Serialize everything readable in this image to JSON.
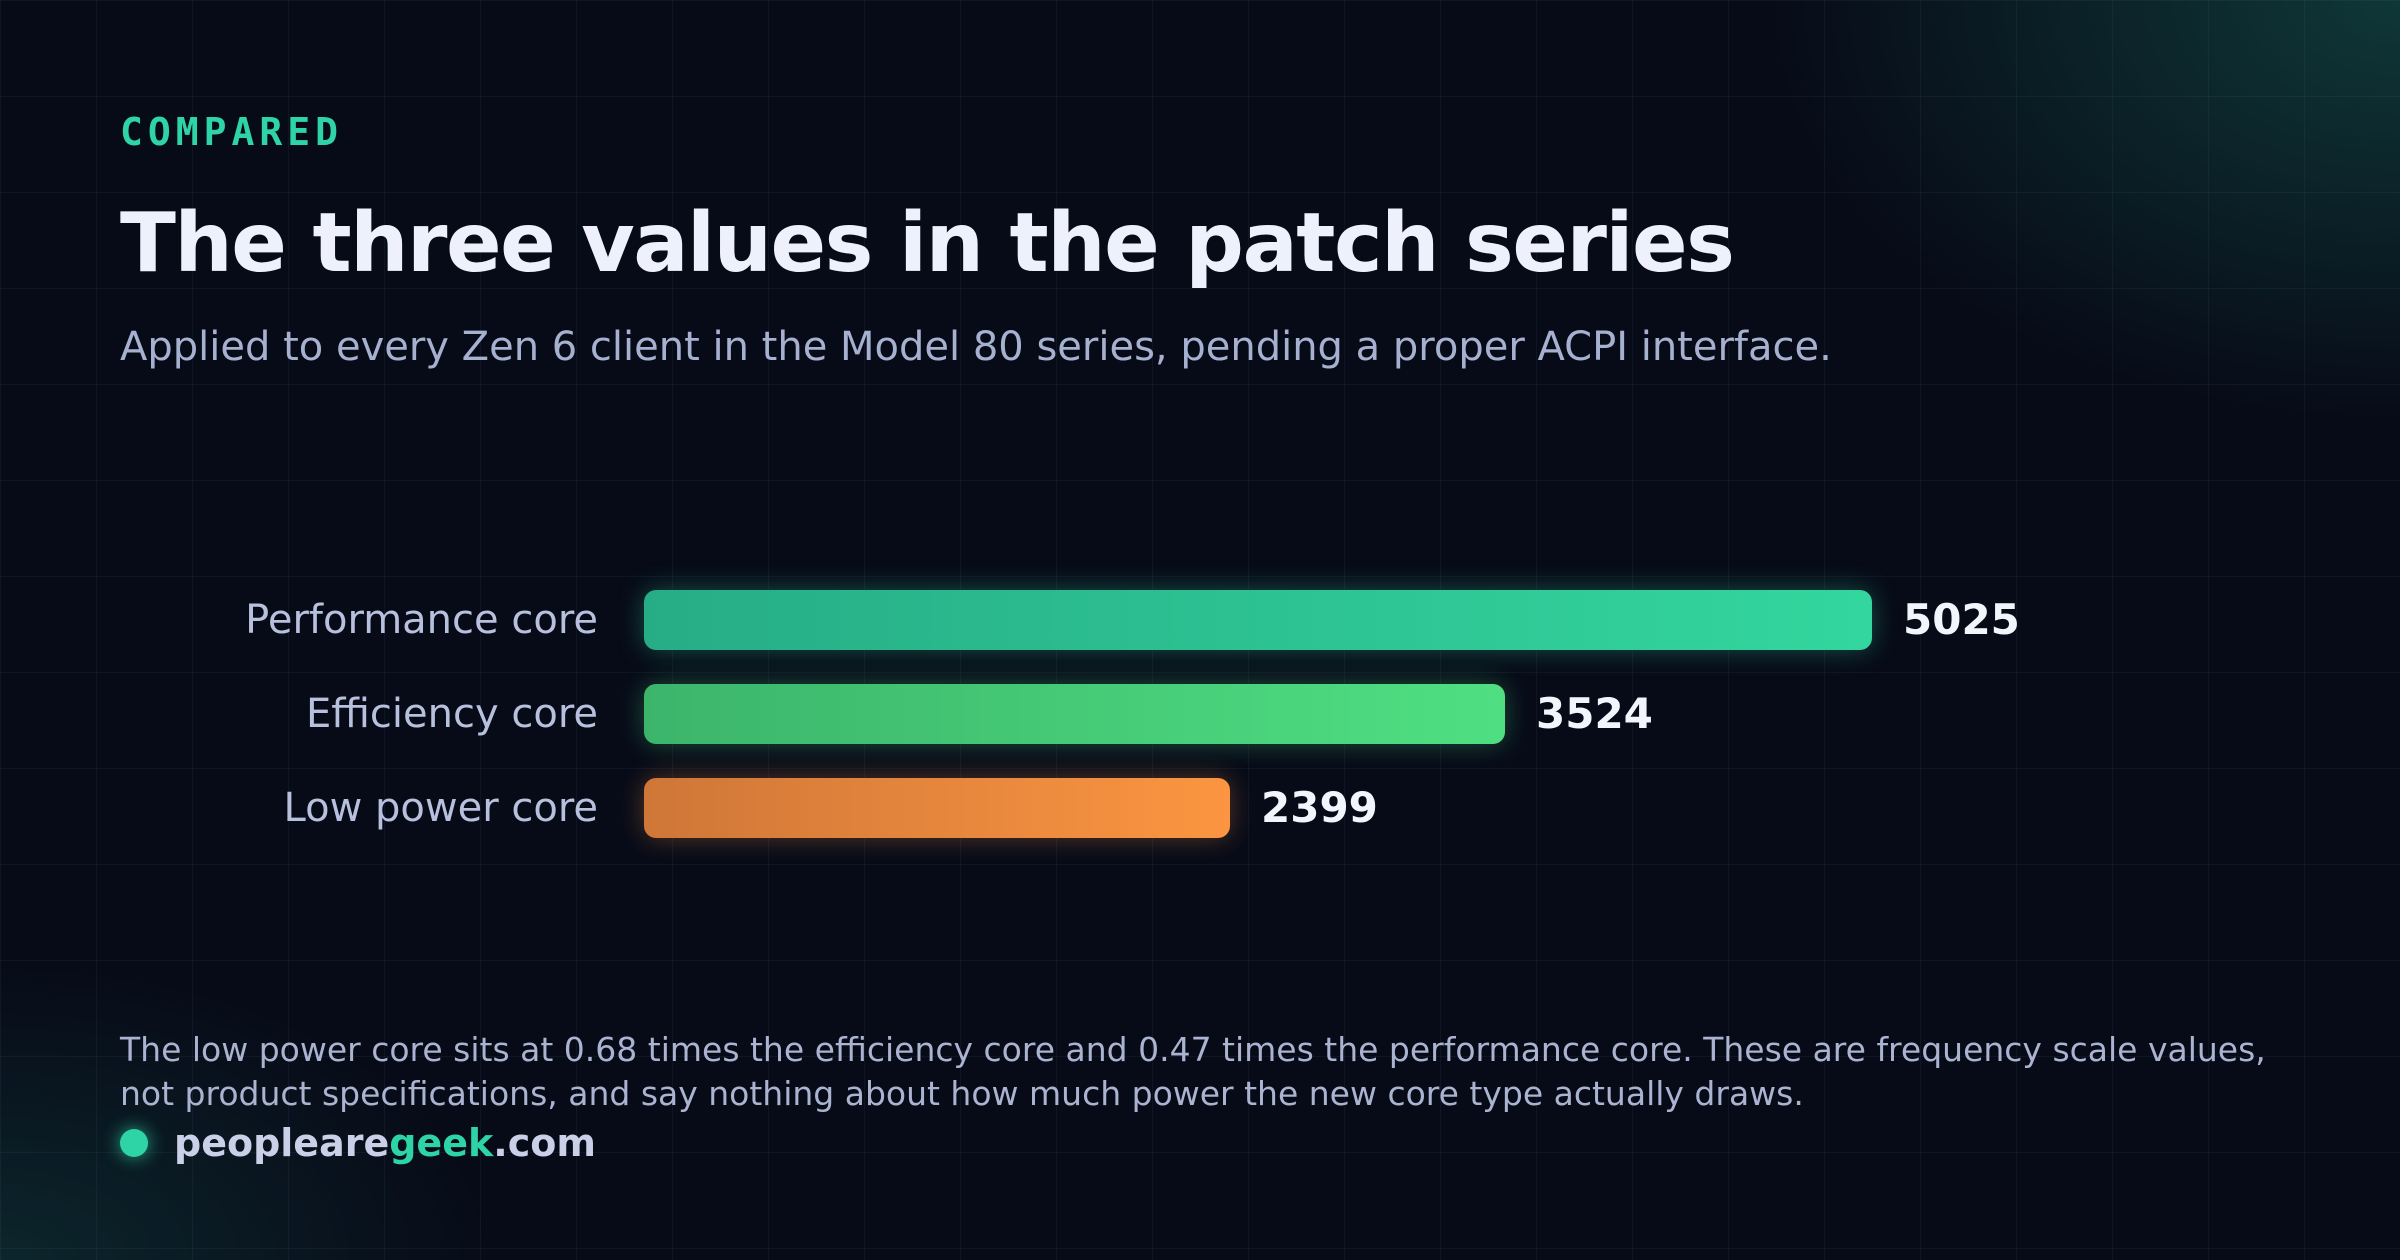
{
  "header": {
    "eyebrow": "COMPARED",
    "title": "The three values in the patch series",
    "subtitle": "Applied to every Zen 6 client in the Model 80 series, pending a proper ACPI interface."
  },
  "chart_data": {
    "type": "bar",
    "orientation": "horizontal",
    "title": "The three values in the patch series",
    "categories": [
      "Performance core",
      "Efficiency core",
      "Low power core"
    ],
    "values": [
      5025,
      3524,
      2399
    ],
    "value_labels": [
      "5025",
      "3524",
      "2399"
    ],
    "colors": [
      "#33d69e",
      "#4fdf82",
      "#fb9541"
    ],
    "xlim": [
      0,
      5025
    ],
    "grid": false,
    "legend": "none"
  },
  "footer": {
    "note": "The low power core sits at 0.68 times the efficiency core and 0.47 times the performance core. These are frequency scale values, not product specifications, and say nothing about how much power the new core type actually draws.",
    "brand_prefix": "peopleare",
    "brand_accent": "geek",
    "brand_suffix": ".com"
  },
  "colors": {
    "accent": "#2fd4a6",
    "background": "#070b18"
  }
}
